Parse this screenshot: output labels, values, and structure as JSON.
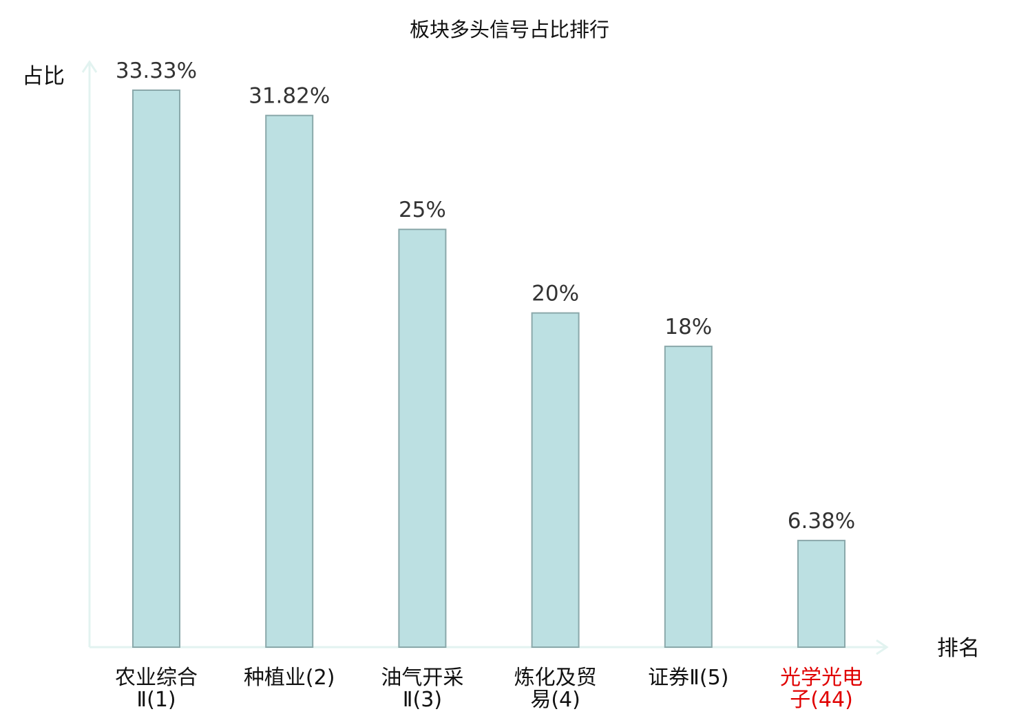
{
  "colors": {
    "bar_fill": "#bce0e2",
    "bar_stroke": "#8aa8aa",
    "axis": "#e2f3f0",
    "text": "#111111",
    "value_text": "#333333",
    "highlight": "#e00000"
  },
  "chart_data": {
    "type": "bar",
    "title": "板块多头信号占比排行",
    "ylabel": "占比",
    "xlabel": "排名",
    "ylim": [
      0,
      33.33
    ],
    "grid": false,
    "unit": "%",
    "categories": [
      {
        "lines": [
          "农业综合",
          "Ⅱ(1)"
        ],
        "highlight": false
      },
      {
        "lines": [
          "种植业(2)"
        ],
        "highlight": false
      },
      {
        "lines": [
          "油气开采",
          "Ⅱ(3)"
        ],
        "highlight": false
      },
      {
        "lines": [
          "炼化及贸",
          "易(4)"
        ],
        "highlight": false
      },
      {
        "lines": [
          "证券Ⅱ(5)"
        ],
        "highlight": false
      },
      {
        "lines": [
          "光学光电",
          "子(44)"
        ],
        "highlight": true
      }
    ],
    "values": [
      33.33,
      31.82,
      25,
      20,
      18,
      6.38
    ],
    "value_labels": [
      "33.33%",
      "31.82%",
      "25%",
      "20%",
      "18%",
      "6.38%"
    ]
  }
}
